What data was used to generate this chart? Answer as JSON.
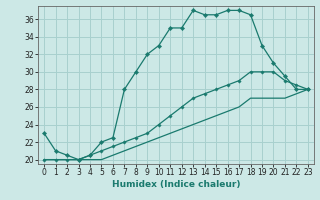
{
  "xlabel": "Humidex (Indice chaleur)",
  "background_color": "#cce8e6",
  "grid_color": "#a8d0ce",
  "line_color": "#1a7a6e",
  "xlim": [
    -0.5,
    23.5
  ],
  "ylim": [
    19.5,
    37.5
  ],
  "yticks": [
    20,
    22,
    24,
    26,
    28,
    30,
    32,
    34,
    36
  ],
  "xticks": [
    0,
    1,
    2,
    3,
    4,
    5,
    6,
    7,
    8,
    9,
    10,
    11,
    12,
    13,
    14,
    15,
    16,
    17,
    18,
    19,
    20,
    21,
    22,
    23
  ],
  "series1_x": [
    0,
    1,
    2,
    3,
    4,
    5,
    6,
    7,
    8,
    9,
    10,
    11,
    12,
    13,
    14,
    15,
    16,
    17,
    18,
    19,
    20,
    21,
    22,
    23
  ],
  "series1_y": [
    23,
    21,
    20.5,
    20,
    20.5,
    22,
    22.5,
    28,
    30,
    32,
    33,
    35,
    35,
    37,
    36.5,
    36.5,
    37,
    37,
    36.5,
    33,
    31,
    29.5,
    28,
    28
  ],
  "series2_x": [
    0,
    1,
    2,
    3,
    4,
    5,
    6,
    7,
    8,
    9,
    10,
    11,
    12,
    13,
    14,
    15,
    16,
    17,
    18,
    19,
    20,
    21,
    22,
    23
  ],
  "series2_y": [
    20,
    20,
    20,
    20,
    20.5,
    21,
    21.5,
    22,
    22.5,
    23,
    24,
    25,
    26,
    27,
    27.5,
    28,
    28.5,
    29,
    30,
    30,
    30,
    29,
    28.5,
    28
  ],
  "series3_x": [
    0,
    1,
    2,
    3,
    4,
    5,
    6,
    7,
    8,
    9,
    10,
    11,
    12,
    13,
    14,
    15,
    16,
    17,
    18,
    19,
    20,
    21,
    22,
    23
  ],
  "series3_y": [
    20,
    20,
    20,
    20,
    20,
    20,
    20.5,
    21,
    21.5,
    22,
    22.5,
    23,
    23.5,
    24,
    24.5,
    25,
    25.5,
    26,
    27,
    27,
    27,
    27,
    27.5,
    28
  ]
}
